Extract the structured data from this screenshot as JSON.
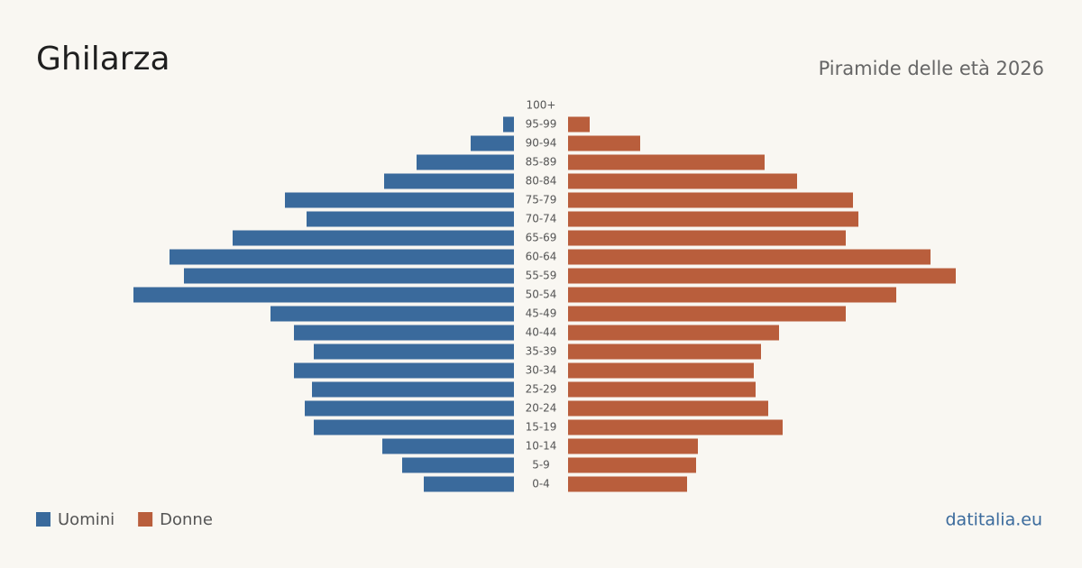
{
  "chart_data": {
    "type": "pyramid",
    "title": "Ghilarza",
    "subtitle": "Piramide delle età 2026",
    "source": "datitalia.eu",
    "categories": [
      "100+",
      "95-99",
      "90-94",
      "85-89",
      "80-84",
      "75-79",
      "70-74",
      "65-69",
      "60-64",
      "55-59",
      "50-54",
      "45-49",
      "40-44",
      "35-39",
      "30-34",
      "25-29",
      "20-24",
      "15-19",
      "10-14",
      "5-9",
      "0-4"
    ],
    "series": [
      {
        "name": "Uomini",
        "color": "#3a6a9c",
        "values": [
          0,
          6,
          24,
          54,
          72,
          127,
          115,
          156,
          191,
          183,
          211,
          135,
          122,
          111,
          122,
          112,
          116,
          111,
          73,
          62,
          50
        ]
      },
      {
        "name": "Donne",
        "color": "#b95e3c",
        "values": [
          0,
          12,
          40,
          109,
          127,
          158,
          161,
          154,
          201,
          215,
          182,
          154,
          117,
          107,
          103,
          104,
          111,
          119,
          72,
          71,
          66
        ]
      }
    ],
    "xlim": [
      0,
      215
    ]
  }
}
